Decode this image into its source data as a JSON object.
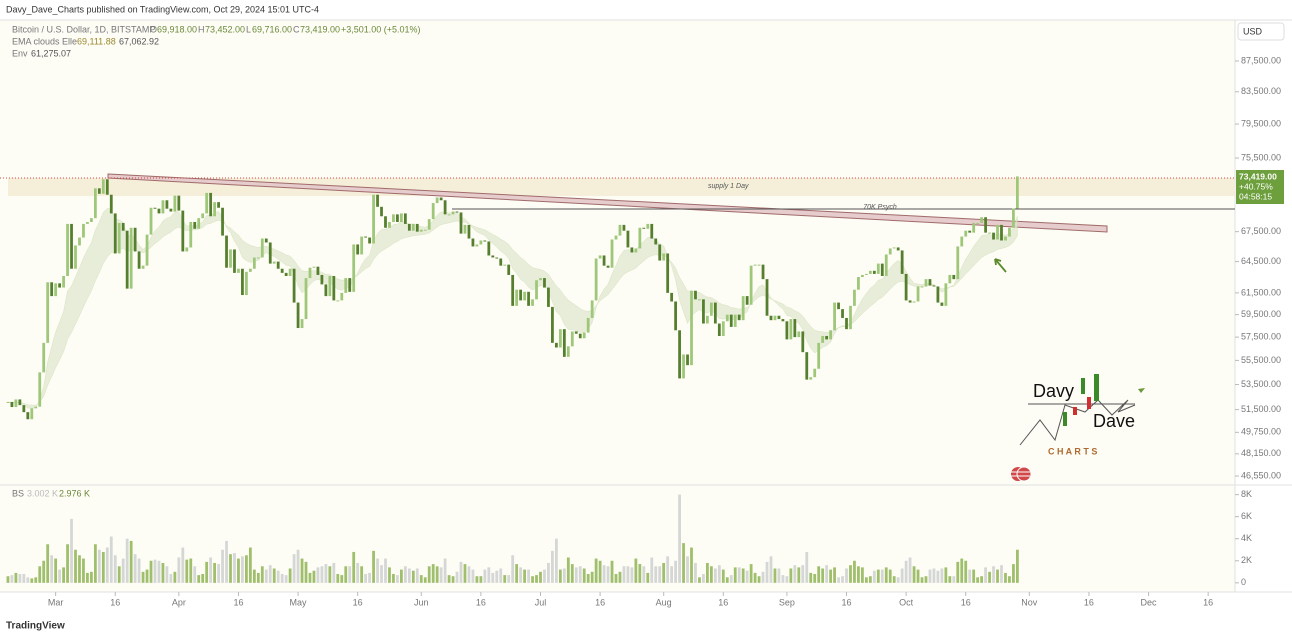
{
  "header": {
    "publisher": "Davy_Dave_Charts published on TradingView.com, Oct 29, 2024 15:01 UTC-4",
    "symbol": "Bitcoin / U.S. Dollar, 1D, BITSTAMP",
    "o_key": "O",
    "o": "69,918.00",
    "h_key": "H",
    "h": "73,452.00",
    "l_key": "L",
    "l": "69,716.00",
    "c_key": "C",
    "c": "73,419.00",
    "change": "+3,501.00 (+5.01%)",
    "ema_name": "EMA clouds Elle",
    "ema_fast": "69,111.88",
    "ema_slow": "67,062.92",
    "env_name": "Env",
    "env": "61,275.07",
    "currency": "USD"
  },
  "price_tag": {
    "last": "73,419.00",
    "pct": "+40.75%",
    "countdown": "04:58:15"
  },
  "drawings": {
    "supply": "supply 1 Day",
    "psych": "70K Psych"
  },
  "volume_legend": {
    "name": "BS",
    "v1": "3.002 K",
    "v2": "2.976 K"
  },
  "logo": {
    "top": "Davy",
    "bottom": "Dave",
    "sub": "C H A R T S"
  },
  "footer": "TradingView",
  "chart_data": {
    "type": "candlestick",
    "title": "Bitcoin / U.S. Dollar, 1D, BITSTAMP",
    "log_scale": true,
    "grid": false,
    "up_color": "#9fc77a",
    "down_color": "#557f2e",
    "volume_up_color": "#9fbf6c",
    "volume_down_color": "#d5d6d6",
    "xlim": [
      "2024-02-16",
      "2024-12-22"
    ],
    "xticks": [
      {
        "value": "2024-03-01",
        "label": "Mar"
      },
      {
        "value": "2024-03-16",
        "label": "16"
      },
      {
        "value": "2024-04-01",
        "label": "Apr"
      },
      {
        "value": "2024-04-16",
        "label": "16"
      },
      {
        "value": "2024-05-01",
        "label": "May"
      },
      {
        "value": "2024-05-16",
        "label": "16"
      },
      {
        "value": "2024-06-01",
        "label": "Jun"
      },
      {
        "value": "2024-06-16",
        "label": "16"
      },
      {
        "value": "2024-07-01",
        "label": "Jul"
      },
      {
        "value": "2024-07-16",
        "label": "16"
      },
      {
        "value": "2024-08-01",
        "label": "Aug"
      },
      {
        "value": "2024-08-16",
        "label": "16"
      },
      {
        "value": "2024-09-01",
        "label": "Sep"
      },
      {
        "value": "2024-09-16",
        "label": "16"
      },
      {
        "value": "2024-10-01",
        "label": "Oct"
      },
      {
        "value": "2024-10-16",
        "label": "16"
      },
      {
        "value": "2024-11-01",
        "label": "Nov"
      },
      {
        "value": "2024-11-16",
        "label": "16"
      },
      {
        "value": "2024-12-01",
        "label": "Dec"
      },
      {
        "value": "2024-12-16",
        "label": "16"
      }
    ],
    "ylim": [
      46060,
      93130
    ],
    "yticks": [
      {
        "value": 87500,
        "label": "87,500.00"
      },
      {
        "value": 83500,
        "label": "83,500.00"
      },
      {
        "value": 79500,
        "label": "79,500.00"
      },
      {
        "value": 75500,
        "label": "75,500.00"
      },
      {
        "value": 67500,
        "label": "67,500.00"
      },
      {
        "value": 64500,
        "label": "64,500.00"
      },
      {
        "value": 61500,
        "label": "61,500.00"
      },
      {
        "value": 59500,
        "label": "59,500.00"
      },
      {
        "value": 57500,
        "label": "57,500.00"
      },
      {
        "value": 55500,
        "label": "55,500.00"
      },
      {
        "value": 53500,
        "label": "53,500.00"
      },
      {
        "value": 51500,
        "label": "51,500.00"
      },
      {
        "value": 49750,
        "label": "49,750.00"
      },
      {
        "value": 48150,
        "label": "48,150.00"
      },
      {
        "value": 46550,
        "label": "46,550.00"
      }
    ],
    "volume_ylim": [
      -650,
      8600
    ],
    "volume_yticks": [
      {
        "value": 8000,
        "label": "8K"
      },
      {
        "value": 6000,
        "label": "6K"
      },
      {
        "value": 4000,
        "label": "4K"
      },
      {
        "value": 2000,
        "label": "2K"
      },
      0
    ],
    "x": [
      "2024-02-18",
      "2024-02-19",
      "2024-02-20",
      "2024-02-21",
      "2024-02-22",
      "2024-02-23",
      "2024-02-24",
      "2024-02-25",
      "2024-02-26",
      "2024-02-27",
      "2024-02-28",
      "2024-02-29",
      "2024-03-01",
      "2024-03-02",
      "2024-03-03",
      "2024-03-04",
      "2024-03-05",
      "2024-03-06",
      "2024-03-07",
      "2024-03-08",
      "2024-03-09",
      "2024-03-10",
      "2024-03-11",
      "2024-03-12",
      "2024-03-13",
      "2024-03-14",
      "2024-03-15",
      "2024-03-16",
      "2024-03-17",
      "2024-03-18",
      "2024-03-19",
      "2024-03-20",
      "2024-03-21",
      "2024-03-22",
      "2024-03-23",
      "2024-03-24",
      "2024-03-25",
      "2024-03-26",
      "2024-03-27",
      "2024-03-28",
      "2024-03-29",
      "2024-03-30",
      "2024-03-31",
      "2024-04-01",
      "2024-04-02",
      "2024-04-03",
      "2024-04-04",
      "2024-04-05",
      "2024-04-06",
      "2024-04-07",
      "2024-04-08",
      "2024-04-09",
      "2024-04-10",
      "2024-04-11",
      "2024-04-12",
      "2024-04-13",
      "2024-04-14",
      "2024-04-15",
      "2024-04-16",
      "2024-04-17",
      "2024-04-18",
      "2024-04-19",
      "2024-04-20",
      "2024-04-21",
      "2024-04-22",
      "2024-04-23",
      "2024-04-24",
      "2024-04-25",
      "2024-04-26",
      "2024-04-27",
      "2024-04-28",
      "2024-04-29",
      "2024-04-30",
      "2024-05-01",
      "2024-05-02",
      "2024-05-03",
      "2024-05-04",
      "2024-05-05",
      "2024-05-06",
      "2024-05-07",
      "2024-05-08",
      "2024-05-09",
      "2024-05-10",
      "2024-05-11",
      "2024-05-12",
      "2024-05-13",
      "2024-05-14",
      "2024-05-15",
      "2024-05-16",
      "2024-05-17",
      "2024-05-18",
      "2024-05-19",
      "2024-05-20",
      "2024-05-21",
      "2024-05-22",
      "2024-05-23",
      "2024-05-24",
      "2024-05-25",
      "2024-05-26",
      "2024-05-27",
      "2024-05-28",
      "2024-05-29",
      "2024-05-30",
      "2024-05-31",
      "2024-06-01",
      "2024-06-02",
      "2024-06-03",
      "2024-06-04",
      "2024-06-05",
      "2024-06-06",
      "2024-06-07",
      "2024-06-08",
      "2024-06-09",
      "2024-06-10",
      "2024-06-11",
      "2024-06-12",
      "2024-06-13",
      "2024-06-14",
      "2024-06-15",
      "2024-06-16",
      "2024-06-17",
      "2024-06-18",
      "2024-06-19",
      "2024-06-20",
      "2024-06-21",
      "2024-06-22",
      "2024-06-23",
      "2024-06-24",
      "2024-06-25",
      "2024-06-26",
      "2024-06-27",
      "2024-06-28",
      "2024-06-29",
      "2024-06-30",
      "2024-07-01",
      "2024-07-02",
      "2024-07-03",
      "2024-07-04",
      "2024-07-05",
      "2024-07-06",
      "2024-07-07",
      "2024-07-08",
      "2024-07-09",
      "2024-07-10",
      "2024-07-11",
      "2024-07-12",
      "2024-07-13",
      "2024-07-14",
      "2024-07-15",
      "2024-07-16",
      "2024-07-17",
      "2024-07-18",
      "2024-07-19",
      "2024-07-20",
      "2024-07-21",
      "2024-07-22",
      "2024-07-23",
      "2024-07-24",
      "2024-07-25",
      "2024-07-26",
      "2024-07-27",
      "2024-07-28",
      "2024-07-29",
      "2024-07-30",
      "2024-07-31",
      "2024-08-01",
      "2024-08-02",
      "2024-08-03",
      "2024-08-04",
      "2024-08-05",
      "2024-08-06",
      "2024-08-07",
      "2024-08-08",
      "2024-08-09",
      "2024-08-10",
      "2024-08-11",
      "2024-08-12",
      "2024-08-13",
      "2024-08-14",
      "2024-08-15",
      "2024-08-16",
      "2024-08-17",
      "2024-08-18",
      "2024-08-19",
      "2024-08-20",
      "2024-08-21",
      "2024-08-22",
      "2024-08-23",
      "2024-08-24",
      "2024-08-25",
      "2024-08-26",
      "2024-08-27",
      "2024-08-28",
      "2024-08-29",
      "2024-08-30",
      "2024-08-31",
      "2024-09-01",
      "2024-09-02",
      "2024-09-03",
      "2024-09-04",
      "2024-09-05",
      "2024-09-06",
      "2024-09-07",
      "2024-09-08",
      "2024-09-09",
      "2024-09-10",
      "2024-09-11",
      "2024-09-12",
      "2024-09-13",
      "2024-09-14",
      "2024-09-15",
      "2024-09-16",
      "2024-09-17",
      "2024-09-18",
      "2024-09-19",
      "2024-09-20",
      "2024-09-21",
      "2024-09-22",
      "2024-09-23",
      "2024-09-24",
      "2024-09-25",
      "2024-09-26",
      "2024-09-27",
      "2024-09-28",
      "2024-09-29",
      "2024-09-30",
      "2024-10-01",
      "2024-10-02",
      "2024-10-03",
      "2024-10-04",
      "2024-10-05",
      "2024-10-06",
      "2024-10-07",
      "2024-10-08",
      "2024-10-09",
      "2024-10-10",
      "2024-10-11",
      "2024-10-12",
      "2024-10-13",
      "2024-10-14",
      "2024-10-15",
      "2024-10-16",
      "2024-10-17",
      "2024-10-18",
      "2024-10-19",
      "2024-10-20",
      "2024-10-21",
      "2024-10-22",
      "2024-10-23",
      "2024-10-24",
      "2024-10-25",
      "2024-10-26",
      "2024-10-27",
      "2024-10-28",
      "2024-10-29"
    ],
    "close": [
      52100,
      51700,
      52300,
      51850,
      51300,
      50750,
      51600,
      51730,
      54500,
      57000,
      62500,
      61200,
      62400,
      62000,
      63100,
      68300,
      63800,
      66100,
      66900,
      68300,
      68500,
      68900,
      72100,
      71500,
      73100,
      71400,
      69400,
      65300,
      68400,
      67600,
      61900,
      67900,
      65500,
      63800,
      64100,
      67200,
      70000,
      69900,
      69400,
      70800,
      69900,
      69600,
      71300,
      69700,
      65500,
      65900,
      68500,
      67800,
      68900,
      69400,
      71600,
      69100,
      70600,
      70000,
      67100,
      63900,
      65700,
      63400,
      63800,
      61300,
      63500,
      63800,
      64900,
      64900,
      66800,
      66400,
      64300,
      64500,
      63800,
      63400,
      63100,
      63800,
      60600,
      58300,
      59100,
      62900,
      63900,
      64000,
      63200,
      62300,
      61200,
      63100,
      60800,
      60800,
      61500,
      62900,
      61600,
      66200,
      65200,
      67000,
      66900,
      66300,
      71400,
      70100,
      69100,
      67900,
      68500,
      69300,
      68500,
      69400,
      68300,
      67600,
      68300,
      67500,
      67700,
      67700,
      68800,
      70500,
      71100,
      70800,
      69300,
      69300,
      69600,
      69500,
      67300,
      68200,
      66800,
      66000,
      66200,
      66600,
      66500,
      65100,
      64900,
      64800,
      64100,
      64200,
      63200,
      60300,
      61800,
      60800,
      61600,
      60300,
      60900,
      62700,
      62900,
      62000,
      60200,
      57000,
      56600,
      58200,
      55800,
      56700,
      58000,
      57800,
      57400,
      57900,
      59200,
      60800,
      64800,
      65100,
      64100,
      63900,
      66700,
      67100,
      68200,
      67600,
      65900,
      65400,
      65800,
      67900,
      67800,
      68300,
      66800,
      66200,
      64600,
      65300,
      61500,
      60700,
      58100,
      54000,
      56000,
      55100,
      61700,
      60900,
      60900,
      58700,
      59400,
      60600,
      58700,
      57600,
      58900,
      59500,
      58400,
      59500,
      59000,
      61200,
      60400,
      64100,
      64200,
      64200,
      62800,
      59400,
      59000,
      59400,
      59100,
      58900,
      57300,
      59100,
      57500,
      58000,
      56200,
      53900,
      54100,
      54800,
      57000,
      57600,
      57300,
      58100,
      60600,
      60000,
      59200,
      58200,
      60300,
      61800,
      63000,
      63200,
      63300,
      63600,
      63300,
      64300,
      63100,
      65200,
      65800,
      65900,
      65600,
      63300,
      60800,
      60600,
      60700,
      62100,
      62100,
      62800,
      62200,
      62100,
      60600,
      60300,
      62400,
      63200,
      62800,
      66000,
      67000,
      67600,
      67400,
      68400,
      68400,
      69000,
      67400,
      67400,
      66700,
      68200,
      66600,
      67000,
      67900,
      69918,
      73419
    ],
    "volume": [
      600,
      700,
      900,
      800,
      800,
      500,
      400,
      500,
      1500,
      2000,
      3500,
      2500,
      2200,
      1200,
      1400,
      3500,
      5800,
      3000,
      2500,
      2200,
      900,
      1000,
      3500,
      3000,
      2800,
      3200,
      4200,
      2500,
      1500,
      2200,
      4000,
      3800,
      2600,
      2200,
      1000,
      1200,
      2000,
      2100,
      2000,
      1800,
      1500,
      800,
      1000,
      2300,
      3200,
      2100,
      2200,
      1500,
      700,
      800,
      1900,
      2300,
      1800,
      1700,
      3000,
      3800,
      2600,
      2700,
      2200,
      2400,
      2500,
      3200,
      1200,
      900,
      1500,
      1200,
      1600,
      1300,
      1100,
      800,
      700,
      1300,
      2600,
      3000,
      2200,
      1900,
      900,
      1100,
      1400,
      1500,
      1700,
      1500,
      1800,
      800,
      700,
      1500,
      1500,
      2800,
      1800,
      1500,
      800,
      900,
      2900,
      2200,
      1600,
      2200,
      1400,
      800,
      700,
      1200,
      1500,
      1300,
      1100,
      1300,
      700,
      500,
      1500,
      1700,
      1500,
      1400,
      2200,
      700,
      600,
      1000,
      1900,
      1700,
      1500,
      1200,
      600,
      600,
      1200,
      1400,
      900,
      1100,
      1300,
      700,
      700,
      2500,
      1700,
      1400,
      1200,
      1200,
      600,
      700,
      1000,
      1200,
      1800,
      2900,
      4000,
      1200,
      1300,
      2300,
      1700,
      1400,
      1500,
      1300,
      800,
      1000,
      2200,
      2000,
      1600,
      1500,
      2000,
      800,
      1000,
      1500,
      1500,
      1400,
      2200,
      1700,
      1500,
      900,
      2300,
      1500,
      1500,
      1800,
      2400,
      1500,
      2000,
      8000,
      3600,
      2400,
      3200,
      1800,
      500,
      800,
      1800,
      1500,
      1300,
      1600,
      1200,
      500,
      700,
      1400,
      1400,
      1300,
      1100,
      1700,
      900,
      600,
      1000,
      1900,
      2400,
      1300,
      1300,
      700,
      600,
      1300,
      1600,
      1400,
      1600,
      2800,
      900,
      800,
      1500,
      1300,
      1600,
      1200,
      1400,
      500,
      600,
      1300,
      1600,
      2000,
      1500,
      1400,
      500,
      600,
      1100,
      1200,
      1200,
      1400,
      1200,
      600,
      500,
      1300,
      2000,
      2300,
      1500,
      1200,
      500,
      600,
      1200,
      1300,
      1100,
      1300,
      1400,
      600,
      600,
      1900,
      2200,
      2000,
      1200,
      1200,
      500,
      600,
      1400,
      1000,
      1500,
      1200,
      1600,
      900,
      600,
      1700,
      3000
    ]
  }
}
